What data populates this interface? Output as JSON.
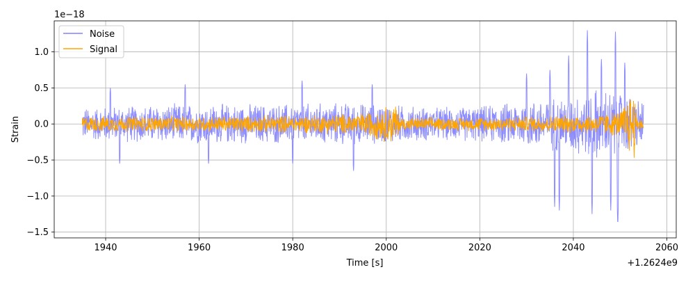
{
  "chart_data": {
    "type": "line",
    "xlabel": "Time [s]",
    "ylabel": "Strain",
    "x_offset_label": "+1.2624e9",
    "y_scale_label": "1e−18",
    "xlim": [
      1929,
      2062
    ],
    "ylim": [
      -1.58,
      1.43
    ],
    "x_ticks": [
      1940,
      1960,
      1980,
      2000,
      2020,
      2040,
      2060
    ],
    "x_tick_labels": [
      "1940",
      "1960",
      "1980",
      "2000",
      "2020",
      "2040",
      "2060"
    ],
    "y_ticks": [
      -1.5,
      -1.0,
      -0.5,
      0.0,
      0.5,
      1.0
    ],
    "y_tick_labels": [
      "−1.5",
      "−1.0",
      "−0.5",
      "0.0",
      "0.5",
      "1.0"
    ],
    "grid": true,
    "legend_position": "upper-left",
    "time_span": [
      1935,
      2055
    ],
    "series": [
      {
        "name": "Noise",
        "color": "#8080ff",
        "typical_amplitude": 0.2,
        "envelope": [
          [
            1935,
            0.25
          ],
          [
            1955,
            0.3
          ],
          [
            1975,
            0.3
          ],
          [
            1990,
            0.32
          ],
          [
            2000,
            0.3
          ],
          [
            2010,
            0.25
          ],
          [
            2020,
            0.27
          ],
          [
            2030,
            0.35
          ],
          [
            2040,
            0.45
          ],
          [
            2045,
            0.55
          ],
          [
            2050,
            0.5
          ],
          [
            2055,
            0.35
          ]
        ],
        "extremes": [
          [
            1941,
            0.5
          ],
          [
            1943,
            -0.55
          ],
          [
            1957,
            0.55
          ],
          [
            1962,
            -0.55
          ],
          [
            1980,
            -0.55
          ],
          [
            1982,
            0.6
          ],
          [
            1993,
            -0.65
          ],
          [
            1997,
            0.55
          ],
          [
            2030,
            0.7
          ],
          [
            2035,
            0.75
          ],
          [
            2036,
            -1.15
          ],
          [
            2037,
            -1.2
          ],
          [
            2039,
            0.95
          ],
          [
            2043,
            1.3
          ],
          [
            2044,
            -1.25
          ],
          [
            2046,
            0.9
          ],
          [
            2048,
            -1.2
          ],
          [
            2049,
            1.28
          ],
          [
            2049.5,
            -1.45
          ],
          [
            2051,
            0.85
          ]
        ]
      },
      {
        "name": "Signal",
        "color": "#ffa500",
        "typical_amplitude": 0.1,
        "envelope": [
          [
            1935,
            0.12
          ],
          [
            1960,
            0.12
          ],
          [
            1985,
            0.14
          ],
          [
            1995,
            0.17
          ],
          [
            2002,
            0.32
          ],
          [
            2003,
            0.1
          ],
          [
            2015,
            0.1
          ],
          [
            2030,
            0.12
          ],
          [
            2045,
            0.15
          ],
          [
            2050,
            0.2
          ],
          [
            2053,
            0.58
          ],
          [
            2053.5,
            0.12
          ],
          [
            2055,
            0.1
          ]
        ]
      }
    ]
  }
}
